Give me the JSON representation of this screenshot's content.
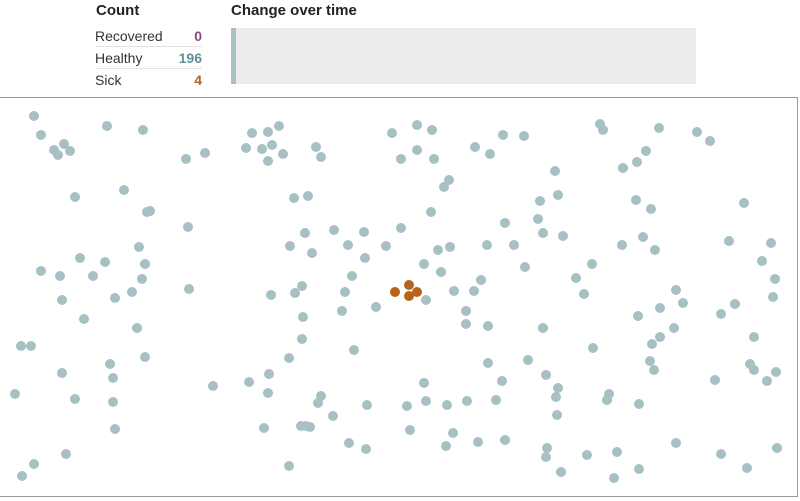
{
  "count": {
    "title": "Count",
    "rows": [
      {
        "label": "Recovered",
        "value": "0",
        "color": "#8e4a7e"
      },
      {
        "label": "Healthy",
        "value": "196",
        "color": "#5f8f99"
      },
      {
        "label": "Sick",
        "value": "4",
        "color": "#b5621b"
      }
    ]
  },
  "change": {
    "title": "Change over time",
    "healthy_fraction": 0.98,
    "healthy_color": "#a7c0c4"
  },
  "colors": {
    "healthy": "#a7c0c4",
    "sick": "#b8631c",
    "recovered": "#8e4a7e"
  }
}
